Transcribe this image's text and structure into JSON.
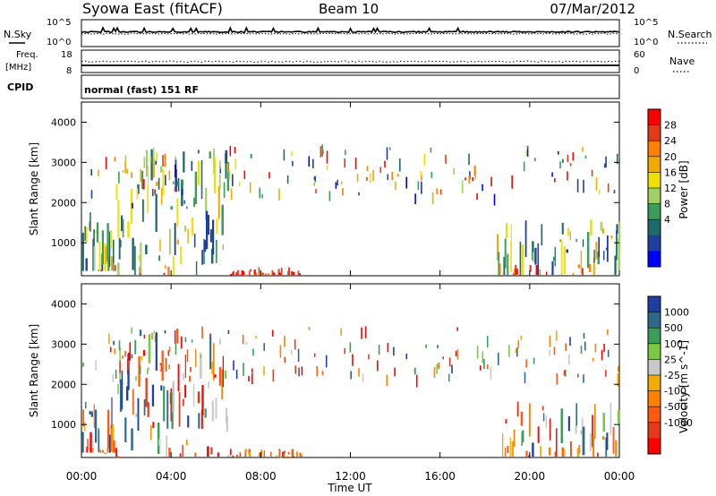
{
  "header": {
    "station": "Syowa East (fitACF)",
    "beam": "Beam 10",
    "date": "07/Mar/2012"
  },
  "nsky_panel": {
    "left_label": "N.Sky",
    "right_label": "N.Search",
    "left_ticks": [
      "10^5",
      "10^0"
    ],
    "right_ticks": [
      "10^5",
      "10^0"
    ]
  },
  "freq_panel": {
    "left_label_1": "Freq.",
    "left_label_2": "[MHz]",
    "right_label": "Nave",
    "left_ticks": [
      "18",
      "8"
    ],
    "right_ticks": [
      "60",
      "0"
    ]
  },
  "cpid_panel": {
    "label": "CPID",
    "mode": "normal (fast) 151 RF"
  },
  "chart_data": [
    {
      "type": "heatmap",
      "title": "Power",
      "quantity": "Power",
      "ylabel": "Slant Range [km]",
      "xlabel": "Time UT",
      "ylim": [
        180,
        4500
      ],
      "xlim": [
        0,
        24
      ],
      "x_ticks": [
        "00:00",
        "04:00",
        "08:00",
        "12:00",
        "16:00",
        "20:00",
        "00:00"
      ],
      "y_ticks": [
        "1000",
        "2000",
        "3000",
        "4000"
      ],
      "colorbar": {
        "label": "Power [dB]",
        "ticks": [
          "28",
          "24",
          "20",
          "16",
          "12",
          "8",
          "4"
        ],
        "colors": [
          "#ff0000",
          "#e33b1a",
          "#ff7f00",
          "#f2a900",
          "#f0e000",
          "#9fd060",
          "#3c9c5a",
          "#1f6a6a",
          "#1f3fa0",
          "#0000ff"
        ]
      },
      "regions": [
        {
          "t_start": 0.0,
          "t_end": 1.5,
          "r_min": 300,
          "r_max": 1800,
          "level": "mixed"
        },
        {
          "t_start": 1.5,
          "t_end": 6.5,
          "r_min": 200,
          "r_max": 3400,
          "level": "mixed"
        },
        {
          "t_start": 6.5,
          "t_end": 9.8,
          "r_min": 200,
          "r_max": 400,
          "level": "low"
        },
        {
          "t_start": 18.5,
          "t_end": 24.0,
          "r_min": 200,
          "r_max": 1600,
          "level": "low"
        }
      ]
    },
    {
      "type": "heatmap",
      "title": "Velocity",
      "quantity": "Velocity",
      "ylabel": "Slant Range [km]",
      "xlabel": "Time UT",
      "ylim": [
        180,
        4500
      ],
      "xlim": [
        0,
        24
      ],
      "x_ticks": [
        "00:00",
        "04:00",
        "08:00",
        "12:00",
        "16:00",
        "20:00",
        "00:00"
      ],
      "y_ticks": [
        "1000",
        "2000",
        "3000",
        "4000"
      ],
      "colorbar": {
        "label": "Velocity [m s^-1]",
        "ticks": [
          "1000",
          "500",
          "100",
          "25",
          "-25",
          "-100",
          "-500",
          "-1000"
        ],
        "colors": [
          "#1f3fa0",
          "#2d6a8a",
          "#3c9c5a",
          "#7ac943",
          "#c8c8c8",
          "#f2a900",
          "#ff7f00",
          "#ff5a10",
          "#e33b1a",
          "#ff0000"
        ]
      },
      "regions": [
        {
          "t_start": 0.0,
          "t_end": 1.5,
          "r_min": 300,
          "r_max": 1700,
          "level": "mixed"
        },
        {
          "t_start": 1.5,
          "t_end": 6.5,
          "r_min": 200,
          "r_max": 3400,
          "level": "mixed"
        },
        {
          "t_start": 6.5,
          "t_end": 9.8,
          "r_min": 200,
          "r_max": 400,
          "level": "low"
        },
        {
          "t_start": 18.5,
          "t_end": 24.0,
          "r_min": 200,
          "r_max": 1600,
          "level": "low"
        }
      ]
    }
  ]
}
